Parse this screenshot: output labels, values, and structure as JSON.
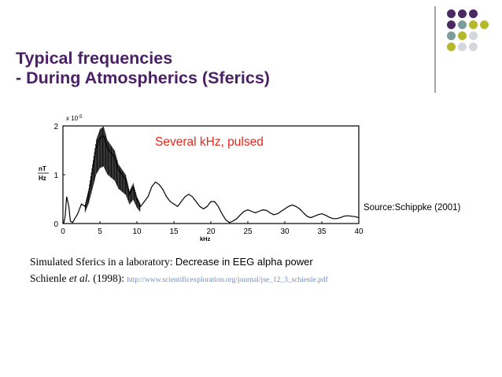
{
  "slide": {
    "title_line1": "Typical frequencies",
    "title_line2": "- During Atmospherics (Sferics)",
    "annotation": "Several kHz, pulsed",
    "source": "Source:Schippke (2001)",
    "caption1_prefix": "Simulated Sferics in a laboratory:",
    "caption1_main": "Decrease in EEG alpha power",
    "caption2_author": "Schienle",
    "caption2_etal": "et al.",
    "caption2_year": "(1998):",
    "caption2_link": "http://www.scientificexploration.org/journal/jse_12_3_schienle.pdf"
  },
  "colors": {
    "title": "#4b1f66",
    "annotation": "#e8251a",
    "link": "#6f8fc4",
    "dot_purple": "#4b2a63",
    "dot_teal": "#7a9c9b",
    "dot_olive": "#b5b82a",
    "dot_grey": "#d6d6de"
  },
  "decor_dots": [
    [
      "purple",
      "purple",
      "purple"
    ],
    [
      "purple",
      "teal",
      "olive",
      "olive"
    ],
    [
      "teal",
      "olive",
      "grey"
    ],
    [
      "olive",
      "grey",
      "grey"
    ]
  ],
  "chart_data": {
    "type": "line",
    "title": "",
    "exponent_label": "x 10",
    "exponent_power": "-5",
    "ylabel_top": "nT",
    "ylabel_bottom": "Hz",
    "xlabel": "kHz",
    "xlim": [
      0,
      40
    ],
    "ylim": [
      0,
      2
    ],
    "xticks": [
      0,
      5,
      10,
      15,
      20,
      25,
      30,
      35,
      40
    ],
    "yticks": [
      0,
      1,
      2
    ],
    "x": [
      0.1,
      0.3,
      0.5,
      0.8,
      1.0,
      1.3,
      1.6,
      2.0,
      2.5,
      3.0,
      3.5,
      4.0,
      4.5,
      5.0,
      5.5,
      6.0,
      6.5,
      7.0,
      7.5,
      8.0,
      8.5,
      9.0,
      9.5,
      10.0,
      10.5,
      11.0,
      11.5,
      12.0,
      12.5,
      13.0,
      13.5,
      14.0,
      14.5,
      15.0,
      15.5,
      16.0,
      16.5,
      17.0,
      17.5,
      18.0,
      18.5,
      19.0,
      19.5,
      20.0,
      20.5,
      21.0,
      21.5,
      22.0,
      22.5,
      23.0,
      23.5,
      24.0,
      24.5,
      25.0,
      25.5,
      26.0,
      26.5,
      27.0,
      27.5,
      28.0,
      28.5,
      29.0,
      29.5,
      30.0,
      30.5,
      31.0,
      31.5,
      32.0,
      32.5,
      33.0,
      33.5,
      34.0,
      34.5,
      35.0,
      35.5,
      36.0,
      36.5,
      37.0,
      37.5,
      38.0,
      38.5,
      39.0,
      39.5,
      40.0
    ],
    "y": [
      0.0,
      0.15,
      0.55,
      0.35,
      0.05,
      0.02,
      0.1,
      0.2,
      0.4,
      0.35,
      0.65,
      1.1,
      1.55,
      1.75,
      1.8,
      1.55,
      1.45,
      1.35,
      1.1,
      1.0,
      0.9,
      0.6,
      0.75,
      0.5,
      0.35,
      0.45,
      0.55,
      0.75,
      0.85,
      0.8,
      0.7,
      0.55,
      0.45,
      0.4,
      0.35,
      0.45,
      0.55,
      0.6,
      0.55,
      0.45,
      0.35,
      0.3,
      0.35,
      0.45,
      0.45,
      0.35,
      0.2,
      0.08,
      0.02,
      0.05,
      0.1,
      0.18,
      0.25,
      0.28,
      0.25,
      0.22,
      0.25,
      0.28,
      0.27,
      0.22,
      0.18,
      0.2,
      0.25,
      0.3,
      0.35,
      0.38,
      0.35,
      0.3,
      0.22,
      0.15,
      0.12,
      0.15,
      0.18,
      0.2,
      0.17,
      0.13,
      0.1,
      0.1,
      0.12,
      0.15,
      0.16,
      0.15,
      0.14,
      0.12
    ]
  }
}
